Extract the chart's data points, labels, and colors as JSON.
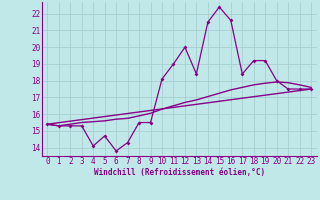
{
  "background_color": "#c0e8e8",
  "grid_color": "#a8d0d0",
  "line_color": "#880088",
  "marker_color": "#880088",
  "xlabel": "Windchill (Refroidissement éolien,°C)",
  "ylabel_values": [
    14,
    15,
    16,
    17,
    18,
    19,
    20,
    21,
    22
  ],
  "xlabel_values": [
    0,
    1,
    2,
    3,
    4,
    5,
    6,
    7,
    8,
    9,
    10,
    11,
    12,
    13,
    14,
    15,
    16,
    17,
    18,
    19,
    20,
    21,
    22,
    23
  ],
  "ylim": [
    13.5,
    22.7
  ],
  "xlim": [
    -0.5,
    23.5
  ],
  "series1_x": [
    0,
    1,
    2,
    3,
    4,
    5,
    6,
    7,
    8,
    9,
    10,
    11,
    12,
    13,
    14,
    15,
    16,
    17,
    18,
    19,
    20,
    21,
    22,
    23
  ],
  "series1_y": [
    15.4,
    15.3,
    15.3,
    15.3,
    14.1,
    14.7,
    13.8,
    14.3,
    15.5,
    15.5,
    18.1,
    19.0,
    20.0,
    18.4,
    21.5,
    22.4,
    21.6,
    18.4,
    19.2,
    19.2,
    18.0,
    17.5,
    17.5,
    17.5
  ],
  "series2_x": [
    0,
    1,
    2,
    3,
    4,
    5,
    6,
    7,
    8,
    9,
    10,
    11,
    12,
    13,
    14,
    15,
    16,
    17,
    18,
    19,
    20,
    21,
    22,
    23
  ],
  "series2_y": [
    15.4,
    15.3,
    15.4,
    15.5,
    15.55,
    15.6,
    15.7,
    15.75,
    15.9,
    16.05,
    16.3,
    16.5,
    16.7,
    16.85,
    17.05,
    17.25,
    17.45,
    17.6,
    17.75,
    17.85,
    17.92,
    17.88,
    17.75,
    17.6
  ],
  "series3_x": [
    0,
    23
  ],
  "series3_y": [
    15.4,
    17.5
  ],
  "font_family": "monospace",
  "tick_fontsize": 5.5,
  "xlabel_fontsize": 5.5
}
